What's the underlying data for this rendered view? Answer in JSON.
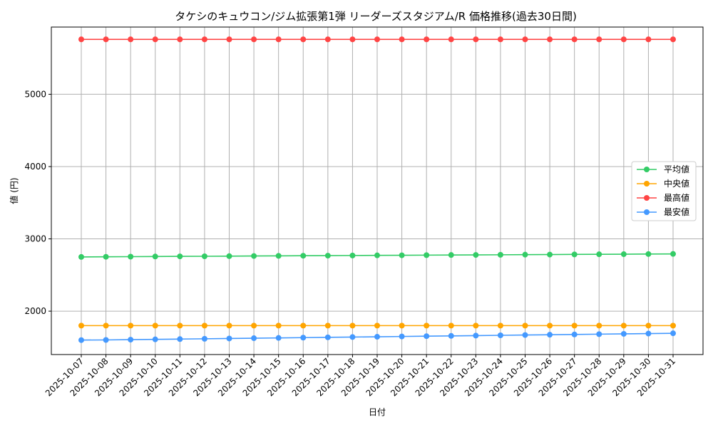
{
  "chart_data": {
    "type": "line",
    "title": "タケシのキュウコン/ジム拡張第1弾 リーダーズスタジアム/R 価格推移(過去30日間)",
    "xlabel": "日付",
    "ylabel": "値 (円)",
    "x": [
      "2025-10-07",
      "2025-10-08",
      "2025-10-09",
      "2025-10-10",
      "2025-10-11",
      "2025-10-12",
      "2025-10-13",
      "2025-10-14",
      "2025-10-15",
      "2025-10-16",
      "2025-10-17",
      "2025-10-18",
      "2025-10-19",
      "2025-10-20",
      "2025-10-21",
      "2025-10-22",
      "2025-10-23",
      "2025-10-24",
      "2025-10-25",
      "2025-10-26",
      "2025-10-27",
      "2025-10-28",
      "2025-10-29",
      "2025-10-30",
      "2025-10-31"
    ],
    "ylim": [
      1400,
      5930
    ],
    "yticks": [
      2000,
      3000,
      4000,
      5000
    ],
    "grid": true,
    "legend_position": "right",
    "series": [
      {
        "name": "平均値",
        "color": "#33cc66",
        "values": [
          2750,
          2752,
          2754,
          2756,
          2758,
          2759,
          2761,
          2763,
          2765,
          2767,
          2768,
          2770,
          2772,
          2773,
          2775,
          2777,
          2778,
          2780,
          2782,
          2783,
          2785,
          2787,
          2788,
          2790,
          2792
        ]
      },
      {
        "name": "中央値",
        "color": "#ffa500",
        "values": [
          1800,
          1800,
          1800,
          1800,
          1800,
          1800,
          1800,
          1800,
          1800,
          1800,
          1800,
          1800,
          1800,
          1800,
          1800,
          1800,
          1800,
          1800,
          1800,
          1800,
          1800,
          1800,
          1800,
          1800,
          1800
        ]
      },
      {
        "name": "最高値",
        "color": "#ff4444",
        "values": [
          5760,
          5760,
          5760,
          5760,
          5760,
          5760,
          5760,
          5760,
          5760,
          5760,
          5760,
          5760,
          5760,
          5760,
          5760,
          5760,
          5760,
          5760,
          5760,
          5760,
          5760,
          5760,
          5760,
          5760,
          5760
        ]
      },
      {
        "name": "最安値",
        "color": "#4499ff",
        "values": [
          1600,
          1602,
          1606,
          1610,
          1614,
          1618,
          1622,
          1626,
          1630,
          1634,
          1638,
          1642,
          1646,
          1650,
          1654,
          1658,
          1662,
          1666,
          1670,
          1674,
          1678,
          1682,
          1686,
          1690,
          1694
        ]
      }
    ]
  }
}
